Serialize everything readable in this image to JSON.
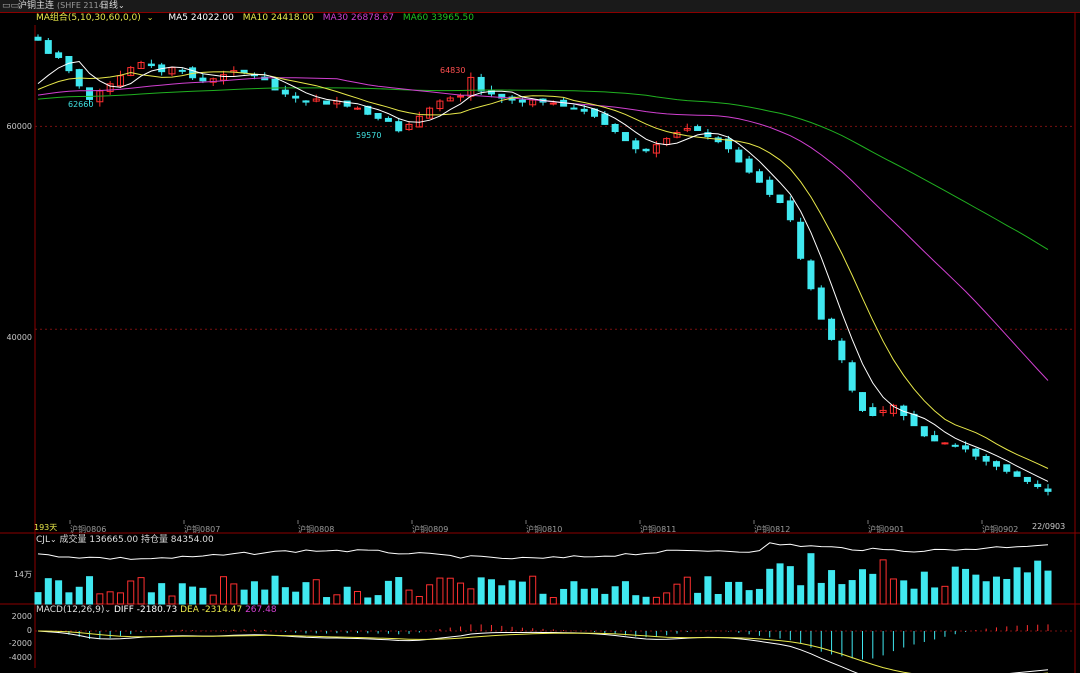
{
  "header": {
    "symbol_title": "沪铜主连",
    "symbol_code": "(SHFE 2114)",
    "period_label": "日线",
    "period_caret": "⌄"
  },
  "legend": {
    "ma_group": "MA组合(5,10,30,60,0,0)",
    "ma5": "MA5 24022.00",
    "ma10": "MA10 24418.00",
    "ma30": "MA30 26878.67",
    "ma60": "MA60 33965.50",
    "colors": {
      "ma5": "#ffffff",
      "ma10": "#e8e84a",
      "ma30": "#d040d0",
      "ma60": "#20b020"
    }
  },
  "volume_panel": {
    "title": "CJL",
    "volume": "成交量 136665.00",
    "open_interest": "持仓量 84354.00",
    "axis_label": "14万"
  },
  "macd_panel": {
    "title": "MACD(12,26,9)",
    "diff": "DIFF -2180.73",
    "dea": "DEA -2314.47",
    "macd": "267.48",
    "axis_labels": [
      "2000",
      "0",
      "-2000",
      "-4000"
    ]
  },
  "price_axis": [
    "60000",
    "40000"
  ],
  "annotations": {
    "high1": "64830",
    "low1": "62660",
    "low2": "59570",
    "days": "193天",
    "last_date": "22/0903"
  },
  "chart_data": {
    "type": "candlestick",
    "xlabels": [
      "沪铜0806",
      "沪铜0807",
      "沪铜0808",
      "沪铜0809",
      "沪铜0810",
      "沪铜0811",
      "沪铜0812",
      "沪铜0901",
      "沪铜0902",
      "沪铜0903"
    ],
    "ylim": [
      21000,
      70000
    ],
    "yticks": [
      60000,
      40000
    ],
    "ma_series": [
      {
        "name": "MA5",
        "last": 24022.0
      },
      {
        "name": "MA10",
        "last": 24418.0
      },
      {
        "name": "MA30",
        "last": 26878.67
      },
      {
        "name": "MA60",
        "last": 33965.5
      }
    ],
    "close_path": [
      68500,
      67200,
      66800,
      65500,
      64000,
      62660,
      63500,
      64200,
      65000,
      65800,
      66300,
      66000,
      65400,
      65800,
      65500,
      64800,
      64500,
      64700,
      65100,
      65500,
      65300,
      65000,
      64600,
      63600,
      63200,
      62800,
      62400,
      62700,
      62200,
      62500,
      62000,
      61800,
      61200,
      60800,
      60500,
      59570,
      60200,
      61000,
      61800,
      62500,
      62800,
      63000,
      64830,
      63500,
      63200,
      62800,
      62600,
      62400,
      62600,
      62400,
      62300,
      62000,
      61800,
      61500,
      61000,
      60200,
      59500,
      58600,
      57800,
      57600,
      58200,
      58800,
      59400,
      59800,
      59600,
      59000,
      58500,
      57800,
      56500,
      55500,
      54500,
      53300,
      52500,
      50800,
      47000,
      44000,
      41000,
      39000,
      37000,
      34000,
      32000,
      31500,
      32000,
      32500,
      31500,
      30500,
      29500,
      29000,
      28800,
      28500,
      28200,
      27500,
      27000,
      26500,
      26000,
      25500,
      25000,
      24500,
      24022
    ]
  }
}
